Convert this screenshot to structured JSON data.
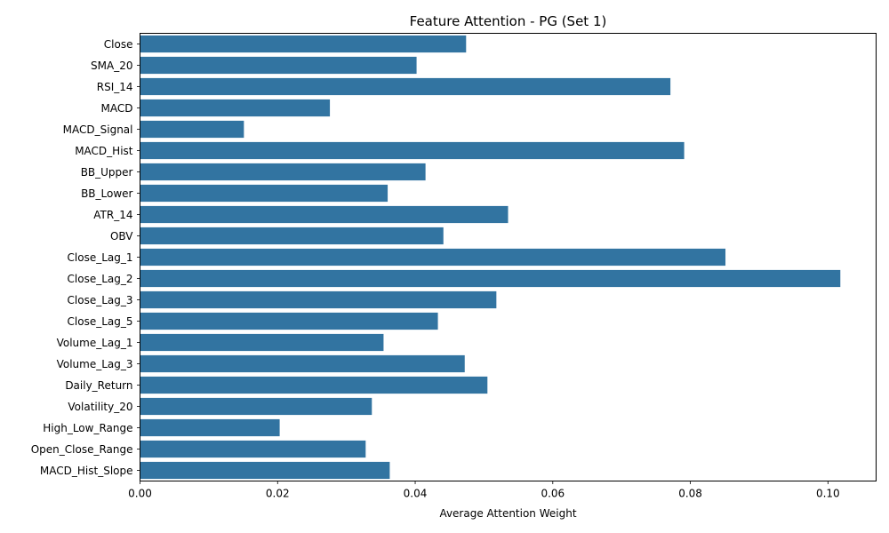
{
  "chart_data": {
    "type": "bar",
    "orientation": "horizontal",
    "title": "Feature Attention - PG (Set 1)",
    "xlabel": "Average Attention Weight",
    "ylabel": "",
    "xlim": [
      0,
      0.107
    ],
    "xticks": [
      0.0,
      0.02,
      0.04,
      0.06,
      0.08,
      0.1
    ],
    "xtick_labels": [
      "0.00",
      "0.02",
      "0.04",
      "0.06",
      "0.08",
      "0.10"
    ],
    "bar_color": "#3274a1",
    "grid": false,
    "categories": [
      "Close",
      "SMA_20",
      "RSI_14",
      "MACD",
      "MACD_Signal",
      "MACD_Hist",
      "BB_Upper",
      "BB_Lower",
      "ATR_14",
      "OBV",
      "Close_Lag_1",
      "Close_Lag_2",
      "Close_Lag_3",
      "Close_Lag_5",
      "Volume_Lag_1",
      "Volume_Lag_3",
      "Daily_Return",
      "Volatility_20",
      "High_Low_Range",
      "Open_Close_Range",
      "MACD_Hist_Slope"
    ],
    "values": [
      0.0474,
      0.0402,
      0.0771,
      0.0276,
      0.0151,
      0.0791,
      0.0415,
      0.036,
      0.0535,
      0.0441,
      0.0851,
      0.1018,
      0.0518,
      0.0433,
      0.0354,
      0.0472,
      0.0505,
      0.0337,
      0.0203,
      0.0328,
      0.0363
    ]
  }
}
